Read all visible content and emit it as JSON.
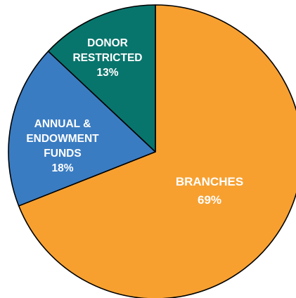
{
  "chart_data": {
    "type": "pie",
    "slices": [
      {
        "label_lines": [
          "BRANCHES"
        ],
        "value": 69,
        "value_label": "69%",
        "color": "#f7a030"
      },
      {
        "label_lines": [
          "ANNUAL &",
          "ENDOWMENT",
          "FUNDS"
        ],
        "value": 18,
        "value_label": "18%",
        "color": "#3a7cc2"
      },
      {
        "label_lines": [
          "DONOR",
          "RESTRICTED"
        ],
        "value": 13,
        "value_label": "13%",
        "color": "#08756c"
      }
    ],
    "start_angle_deg": 0,
    "direction": "clockwise",
    "slice_border_color": "#000000",
    "legend": "none",
    "labels_inside": true
  }
}
